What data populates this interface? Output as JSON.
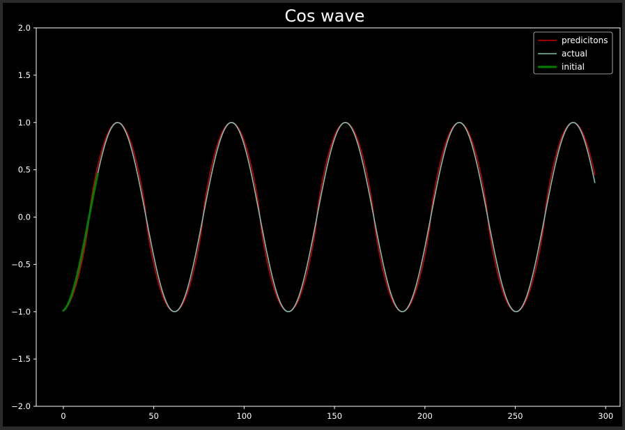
{
  "chart_data": {
    "type": "line",
    "title": "Cos wave",
    "xlabel": "",
    "ylabel": "",
    "xlim": [
      -15,
      308
    ],
    "ylim": [
      -2.0,
      2.0
    ],
    "xticks": [
      0,
      50,
      100,
      150,
      200,
      250,
      300
    ],
    "yticks": [
      -2.0,
      -1.5,
      -1.0,
      -0.5,
      0.0,
      0.5,
      1.0,
      1.5,
      2.0
    ],
    "xtick_labels": [
      "0",
      "50",
      "100",
      "150",
      "200",
      "250",
      "300"
    ],
    "ytick_labels": [
      "−2.0",
      "−1.5",
      "−1.0",
      "−0.5",
      "0.0",
      "0.5",
      "1.0",
      "1.5",
      "2.0"
    ],
    "grid": false,
    "legend_position": "top-right",
    "background": "#000000",
    "series": [
      {
        "name": "predicitons",
        "color": "#cc0000",
        "style": "sharpened-cosine",
        "period": 63,
        "phase_offset": 30,
        "x_range": [
          0,
          294
        ],
        "amplitude": 1.0
      },
      {
        "name": "actual",
        "color": "#7fbfb3",
        "style": "cosine",
        "period": 63,
        "phase_offset": 30,
        "x_range": [
          0,
          294
        ],
        "amplitude": 1.0
      },
      {
        "name": "initial",
        "color": "#008000",
        "style": "cosine",
        "period": 63,
        "phase_offset": 30,
        "x_range": [
          0,
          19
        ],
        "amplitude": 1.0
      }
    ]
  }
}
